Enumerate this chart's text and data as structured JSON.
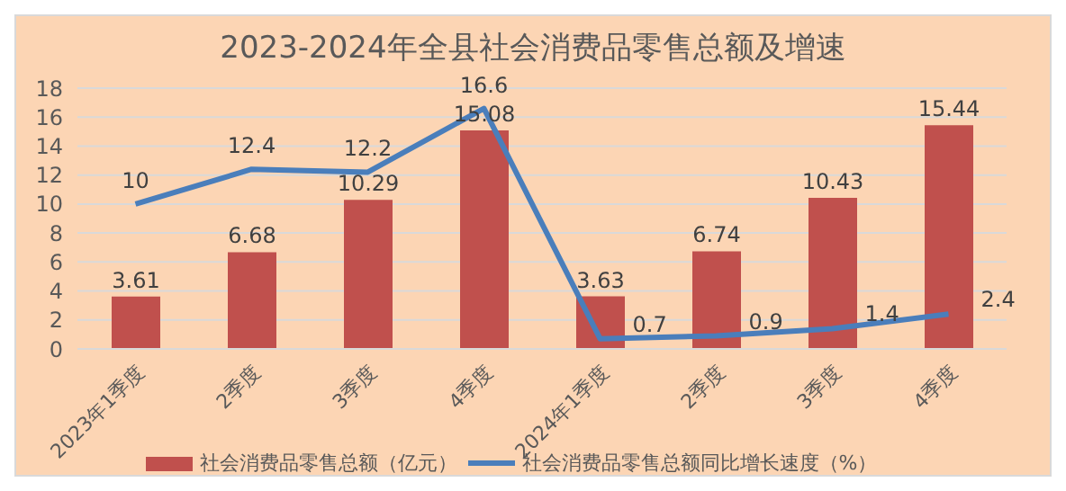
{
  "chart_data": {
    "type": "bar",
    "title": "2023-2024年全县社会消费品零售总额及增速",
    "categories": [
      "2023年1季度",
      "2季度",
      "3季度",
      "4季度",
      "2024年1季度",
      "2季度",
      "3季度",
      "4季度"
    ],
    "series": [
      {
        "name": "社会消费品零售总额（亿元）",
        "color": "#c0504d",
        "values": [
          3.61,
          6.68,
          10.29,
          15.08,
          3.63,
          6.74,
          10.43,
          15.44
        ]
      },
      {
        "name": "社会消费品零售总额同比增长速度（%）",
        "type": "line",
        "color": "#4a7ebb",
        "values": [
          10,
          12.4,
          12.2,
          16.6,
          0.7,
          0.9,
          1.4,
          2.4
        ]
      }
    ],
    "ylim": [
      0,
      18
    ],
    "yticks": [
      0,
      2,
      4,
      6,
      8,
      10,
      12,
      14,
      16,
      18
    ],
    "grid": "y",
    "legend": "bottom",
    "data_labels": true,
    "marker": "none"
  }
}
